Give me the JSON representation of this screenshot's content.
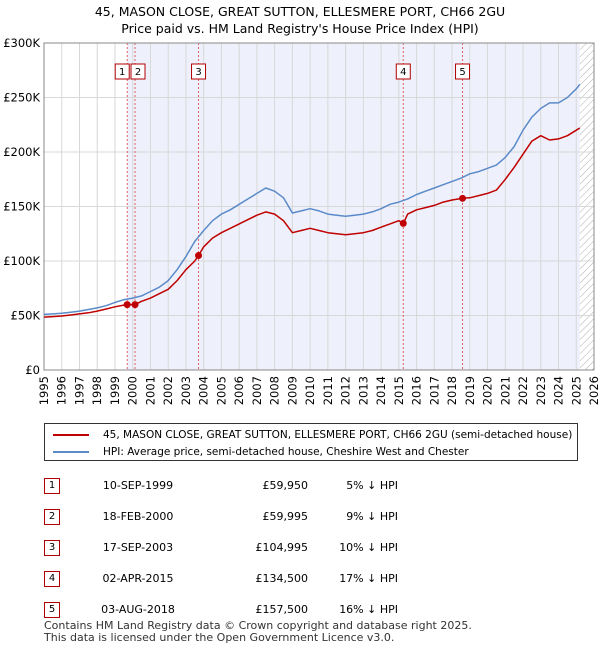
{
  "title_line1": "45, MASON CLOSE, GREAT SUTTON, ELLESMERE PORT, CH66 2GU",
  "title_line2": "Price paid vs. HM Land Registry's House Price Index (HPI)",
  "chart_data": {
    "type": "line",
    "xlim": [
      1995,
      2026
    ],
    "ylim": [
      0,
      300000
    ],
    "y_ticks": [
      0,
      50000,
      100000,
      150000,
      200000,
      250000,
      300000
    ],
    "y_tick_labels": [
      "£0",
      "£50K",
      "£100K",
      "£150K",
      "£200K",
      "£250K",
      "£300K"
    ],
    "x_ticks": [
      1995,
      1996,
      1997,
      1998,
      1999,
      2000,
      2001,
      2002,
      2003,
      2004,
      2005,
      2006,
      2007,
      2008,
      2009,
      2010,
      2011,
      2012,
      2013,
      2014,
      2015,
      2016,
      2017,
      2018,
      2019,
      2020,
      2021,
      2022,
      2023,
      2024,
      2025,
      2026
    ],
    "data_end": 2025.2,
    "series": [
      {
        "name": "HPI: Average price, semi-detached house, Cheshire West and Chester",
        "color": "#5b8ac9",
        "x": [
          1995,
          1995.5,
          1996,
          1996.5,
          1997,
          1997.5,
          1998,
          1998.5,
          1999,
          1999.5,
          2000,
          2000.5,
          2001,
          2001.5,
          2002,
          2002.5,
          2003,
          2003.5,
          2004,
          2004.5,
          2005,
          2005.5,
          2006,
          2006.5,
          2007,
          2007.5,
          2008,
          2008.5,
          2009,
          2009.5,
          2010,
          2010.5,
          2011,
          2011.5,
          2012,
          2012.5,
          2013,
          2013.5,
          2014,
          2014.5,
          2015,
          2015.5,
          2016,
          2016.5,
          2017,
          2017.5,
          2018,
          2018.5,
          2019,
          2019.5,
          2020,
          2020.5,
          2021,
          2021.5,
          2022,
          2022.5,
          2023,
          2023.5,
          2024,
          2024.5,
          2025,
          2025.2
        ],
        "values": [
          51000,
          51500,
          52000,
          53000,
          54000,
          55500,
          57000,
          59000,
          62000,
          64500,
          66000,
          68000,
          72000,
          76000,
          82000,
          92000,
          104000,
          118000,
          128000,
          137000,
          143000,
          147000,
          152000,
          157000,
          162000,
          167000,
          164000,
          158000,
          144000,
          146000,
          148000,
          146000,
          143000,
          142000,
          141000,
          142000,
          143000,
          145000,
          148000,
          152000,
          154000,
          157000,
          161000,
          164000,
          167000,
          170000,
          173000,
          176000,
          180000,
          182000,
          185000,
          188000,
          195000,
          205000,
          220000,
          232000,
          240000,
          245000,
          245000,
          250000,
          258000,
          262000
        ]
      },
      {
        "name": "45, MASON CLOSE, GREAT SUTTON, ELLESMERE PORT, CH66 2GU (semi-detached house)",
        "color": "#c00000",
        "x": [
          1995,
          1995.5,
          1996,
          1996.5,
          1997,
          1997.5,
          1998,
          1998.5,
          1999,
          1999.5,
          1999.69,
          2000.13,
          2000.5,
          2001,
          2001.5,
          2002,
          2002.5,
          2003,
          2003.5,
          2003.71,
          2004,
          2004.5,
          2005,
          2005.5,
          2006,
          2006.5,
          2007,
          2007.5,
          2008,
          2008.5,
          2009,
          2009.5,
          2010,
          2010.5,
          2011,
          2011.5,
          2012,
          2012.5,
          2013,
          2013.5,
          2014,
          2014.5,
          2015,
          2015.25,
          2015.5,
          2016,
          2016.5,
          2017,
          2017.5,
          2018,
          2018.59,
          2019,
          2019.5,
          2020,
          2020.5,
          2021,
          2021.5,
          2022,
          2022.5,
          2023,
          2023.5,
          2024,
          2024.5,
          2025,
          2025.2
        ],
        "values": [
          48500,
          49000,
          49500,
          50500,
          51500,
          52500,
          54000,
          56000,
          58000,
          59500,
          59950,
          59995,
          63000,
          66000,
          70000,
          74000,
          82000,
          92000,
          100000,
          104995,
          113000,
          121000,
          126000,
          130000,
          134000,
          138000,
          142000,
          145000,
          143000,
          137000,
          126000,
          128000,
          130000,
          128000,
          126000,
          125000,
          124000,
          125000,
          126000,
          128000,
          131000,
          134000,
          137000,
          134500,
          143000,
          147000,
          149000,
          151000,
          154000,
          156000,
          157500,
          158000,
          160000,
          162000,
          165000,
          175000,
          186000,
          198000,
          210000,
          215000,
          211000,
          212000,
          215000,
          220000,
          222000
        ]
      }
    ],
    "sales": [
      {
        "num": "1",
        "x": 1999.69,
        "price": 59950
      },
      {
        "num": "2",
        "x": 2000.13,
        "price": 59995
      },
      {
        "num": "3",
        "x": 2003.71,
        "price": 104995
      },
      {
        "num": "4",
        "x": 2015.25,
        "price": 134500
      },
      {
        "num": "5",
        "x": 2018.59,
        "price": 157500
      }
    ]
  },
  "legend": {
    "property": "45, MASON CLOSE, GREAT SUTTON, ELLESMERE PORT, CH66 2GU (semi-detached house)",
    "hpi": "HPI: Average price, semi-detached house, Cheshire West and Chester",
    "property_color": "#c00000",
    "hpi_color": "#5b8ac9"
  },
  "table": [
    {
      "num": "1",
      "date": "10-SEP-1999",
      "price": "£59,950",
      "hpi": "5% ↓ HPI"
    },
    {
      "num": "2",
      "date": "18-FEB-2000",
      "price": "£59,995",
      "hpi": "9% ↓ HPI"
    },
    {
      "num": "3",
      "date": "17-SEP-2003",
      "price": "£104,995",
      "hpi": "10% ↓ HPI"
    },
    {
      "num": "4",
      "date": "02-APR-2015",
      "price": "£134,500",
      "hpi": "17% ↓ HPI"
    },
    {
      "num": "5",
      "date": "03-AUG-2018",
      "price": "£157,500",
      "hpi": "16% ↓ HPI"
    }
  ],
  "footer_line1": "Contains HM Land Registry data © Crown copyright and database right 2025.",
  "footer_line2": "This data is licensed under the Open Government Licence v3.0."
}
